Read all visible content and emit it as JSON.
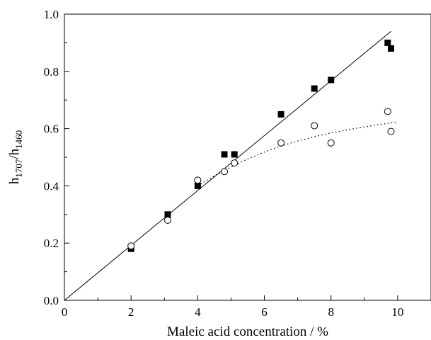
{
  "chart_data": {
    "type": "scatter",
    "xlabel": "Maleic acid concentration / %",
    "ylabel": {
      "base": "h",
      "sub1": "1707",
      "sep": "/h",
      "sub2": "1460"
    },
    "xlim": [
      0,
      11
    ],
    "ylim": [
      0,
      1.0
    ],
    "x_ticks": [
      0,
      2,
      4,
      6,
      8,
      10
    ],
    "x_tick_labels": [
      "0",
      "2",
      "4",
      "6",
      "8",
      "10"
    ],
    "x_minor_ticks": [
      1,
      3,
      5,
      7,
      9
    ],
    "y_ticks": [
      0,
      0.2,
      0.4,
      0.6,
      0.8,
      1.0
    ],
    "y_tick_labels": [
      "0.0",
      "0.2",
      "0.4",
      "0.6",
      "0.8",
      "1.0"
    ],
    "y_minor_ticks": [
      0.1,
      0.3,
      0.5,
      0.7,
      0.9
    ],
    "grid": false,
    "series": [
      {
        "marker": "filled-square",
        "color": "#000000",
        "points": [
          [
            2.0,
            0.18
          ],
          [
            3.1,
            0.3
          ],
          [
            4.0,
            0.4
          ],
          [
            4.8,
            0.51
          ],
          [
            5.1,
            0.51
          ],
          [
            6.5,
            0.65
          ],
          [
            7.5,
            0.74
          ],
          [
            8.0,
            0.77
          ],
          [
            9.7,
            0.9
          ],
          [
            9.8,
            0.88
          ]
        ],
        "fit": {
          "style": "solid",
          "x": [
            0,
            9.8
          ],
          "y": [
            0,
            0.94
          ]
        }
      },
      {
        "marker": "open-circle",
        "color": "#000000",
        "points": [
          [
            2.0,
            0.19
          ],
          [
            3.1,
            0.28
          ],
          [
            4.0,
            0.42
          ],
          [
            4.8,
            0.45
          ],
          [
            5.1,
            0.48
          ],
          [
            6.5,
            0.55
          ],
          [
            7.5,
            0.61
          ],
          [
            8.0,
            0.55
          ],
          [
            9.7,
            0.66
          ],
          [
            9.8,
            0.59
          ]
        ],
        "fit": {
          "style": "dotted",
          "x": [
            4.0,
            4.5,
            5.0,
            5.5,
            6.0,
            6.5,
            7.0,
            7.5,
            8.0,
            8.5,
            9.0,
            9.5,
            10.0
          ],
          "y": [
            0.4,
            0.435,
            0.466,
            0.494,
            0.518,
            0.539,
            0.557,
            0.572,
            0.585,
            0.596,
            0.606,
            0.615,
            0.623
          ]
        }
      }
    ]
  }
}
